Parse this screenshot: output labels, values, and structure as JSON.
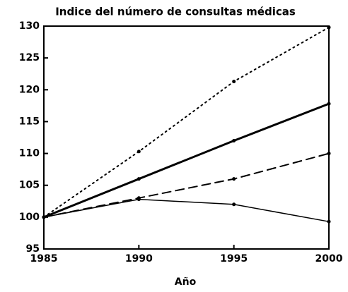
{
  "chart_data": {
    "type": "line",
    "title": "Indice del número de consultas médicas",
    "x_label": "Año",
    "x": [
      1985,
      1990,
      1995,
      2000
    ],
    "xlim": [
      1985,
      2000
    ],
    "xticks": [
      1985,
      1990,
      1995,
      2000
    ],
    "ylim": [
      95,
      130
    ],
    "yticks": [
      95,
      100,
      105,
      110,
      115,
      120,
      125,
      130
    ],
    "series": [
      {
        "color": "#000000",
        "dash": "dotted",
        "width": 2,
        "values": [
          100,
          110.3,
          121.3,
          129.8
        ]
      },
      {
        "color": "#000000",
        "dash": "solid",
        "width": 3,
        "values": [
          100,
          106,
          112,
          117.8
        ]
      },
      {
        "color": "#000000",
        "dash": "dashed",
        "width": 2,
        "values": [
          100,
          103,
          106,
          110
        ]
      },
      {
        "color": "#000000",
        "dash": "solid",
        "width": 1.5,
        "values": [
          100,
          102.8,
          102,
          99.3
        ]
      }
    ]
  }
}
